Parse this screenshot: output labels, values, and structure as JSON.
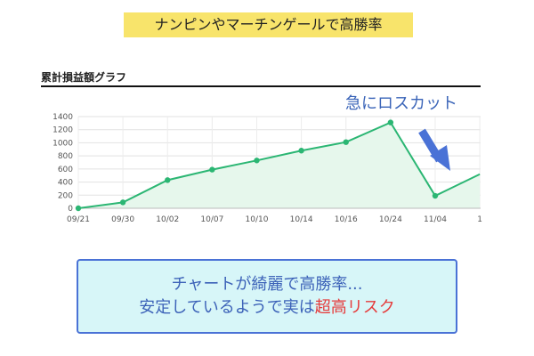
{
  "banner": {
    "text": "ナンピンやマーチンゲールで高勝率"
  },
  "chart_title": "累計損益額グラフ",
  "annotation": {
    "text": "急にロスカット",
    "arrow_icon": "arrow-down-right-icon"
  },
  "callout": {
    "line1": "チャートが綺麗で高勝率...",
    "line2_prefix": "安定しているようで実は",
    "line2_highlight": "超高リスク"
  },
  "colors": {
    "banner": "#f8e46b",
    "line": "#2bb673",
    "fill": "#e6f7ec",
    "annotation": "#3a64b8",
    "callout_bg": "#d7f6f8",
    "callout_border": "#4a72d6",
    "risk": "#e53b3b"
  },
  "chart_data": {
    "type": "area",
    "title": "累計損益額グラフ",
    "x": [
      "09/21",
      "09/30",
      "10/02",
      "10/07",
      "10/10",
      "10/14",
      "10/16",
      "10/24",
      "11/04",
      "1"
    ],
    "values": [
      0,
      90,
      430,
      590,
      730,
      880,
      1010,
      1310,
      190,
      520
    ],
    "ylim": [
      0,
      1400
    ],
    "yticks": [
      0,
      200,
      400,
      600,
      800,
      1000,
      1200,
      1400
    ],
    "grid": true,
    "legend": "none"
  }
}
